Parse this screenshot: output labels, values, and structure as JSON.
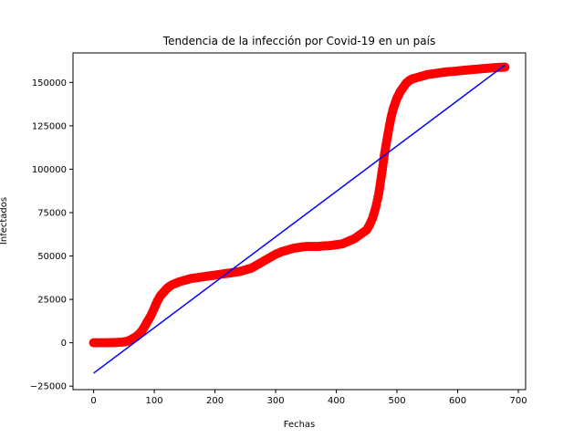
{
  "chart_data": {
    "type": "scatter",
    "title": "Tendencia de la infección por Covid-19 en un país",
    "xlabel": "Fechas",
    "ylabel": "Infectados",
    "xlim": [
      -34,
      712
    ],
    "ylim": [
      -27000,
      167000
    ],
    "xticks": [
      0,
      100,
      200,
      300,
      400,
      500,
      600,
      700
    ],
    "yticks": [
      -25000,
      0,
      25000,
      50000,
      75000,
      100000,
      125000,
      150000
    ],
    "grid": false,
    "series": [
      {
        "kind": "scatter",
        "color": "#ff0000",
        "x": [
          0,
          10,
          20,
          30,
          40,
          50,
          55,
          60,
          65,
          70,
          75,
          80,
          85,
          90,
          95,
          100,
          105,
          110,
          115,
          120,
          125,
          130,
          140,
          150,
          160,
          170,
          180,
          190,
          200,
          210,
          220,
          230,
          240,
          250,
          260,
          270,
          280,
          290,
          300,
          310,
          320,
          330,
          340,
          350,
          360,
          370,
          380,
          390,
          400,
          410,
          420,
          430,
          440,
          450,
          455,
          460,
          465,
          470,
          473,
          476,
          479,
          482,
          485,
          488,
          491,
          494,
          497,
          500,
          503,
          506,
          510,
          515,
          520,
          525,
          530,
          540,
          550,
          560,
          570,
          580,
          590,
          600,
          610,
          620,
          630,
          640,
          650,
          660,
          670,
          678
        ],
        "y": [
          0,
          0,
          0,
          100,
          200,
          500,
          800,
          1500,
          2500,
          3500,
          5000,
          7000,
          10000,
          13000,
          16000,
          20000,
          24000,
          27000,
          29000,
          31000,
          32500,
          33500,
          35000,
          36000,
          37000,
          37500,
          38000,
          38500,
          39000,
          39500,
          40000,
          40500,
          41000,
          42000,
          43000,
          45000,
          47000,
          49000,
          51000,
          52500,
          53500,
          54500,
          55000,
          55500,
          55500,
          55500,
          55800,
          56000,
          56500,
          57000,
          58500,
          60000,
          62500,
          65000,
          68000,
          72000,
          78000,
          86000,
          93000,
          100000,
          108000,
          114000,
          120000,
          126000,
          131000,
          135000,
          138000,
          141000,
          143000,
          145000,
          147000,
          149500,
          151000,
          152000,
          152500,
          153500,
          154500,
          155000,
          155500,
          156000,
          156300,
          156600,
          157000,
          157300,
          157600,
          157900,
          158200,
          158500,
          158700,
          158800
        ]
      },
      {
        "kind": "line",
        "color": "#0000ff",
        "x": [
          0,
          678
        ],
        "y": [
          -17500,
          160000
        ]
      }
    ]
  }
}
